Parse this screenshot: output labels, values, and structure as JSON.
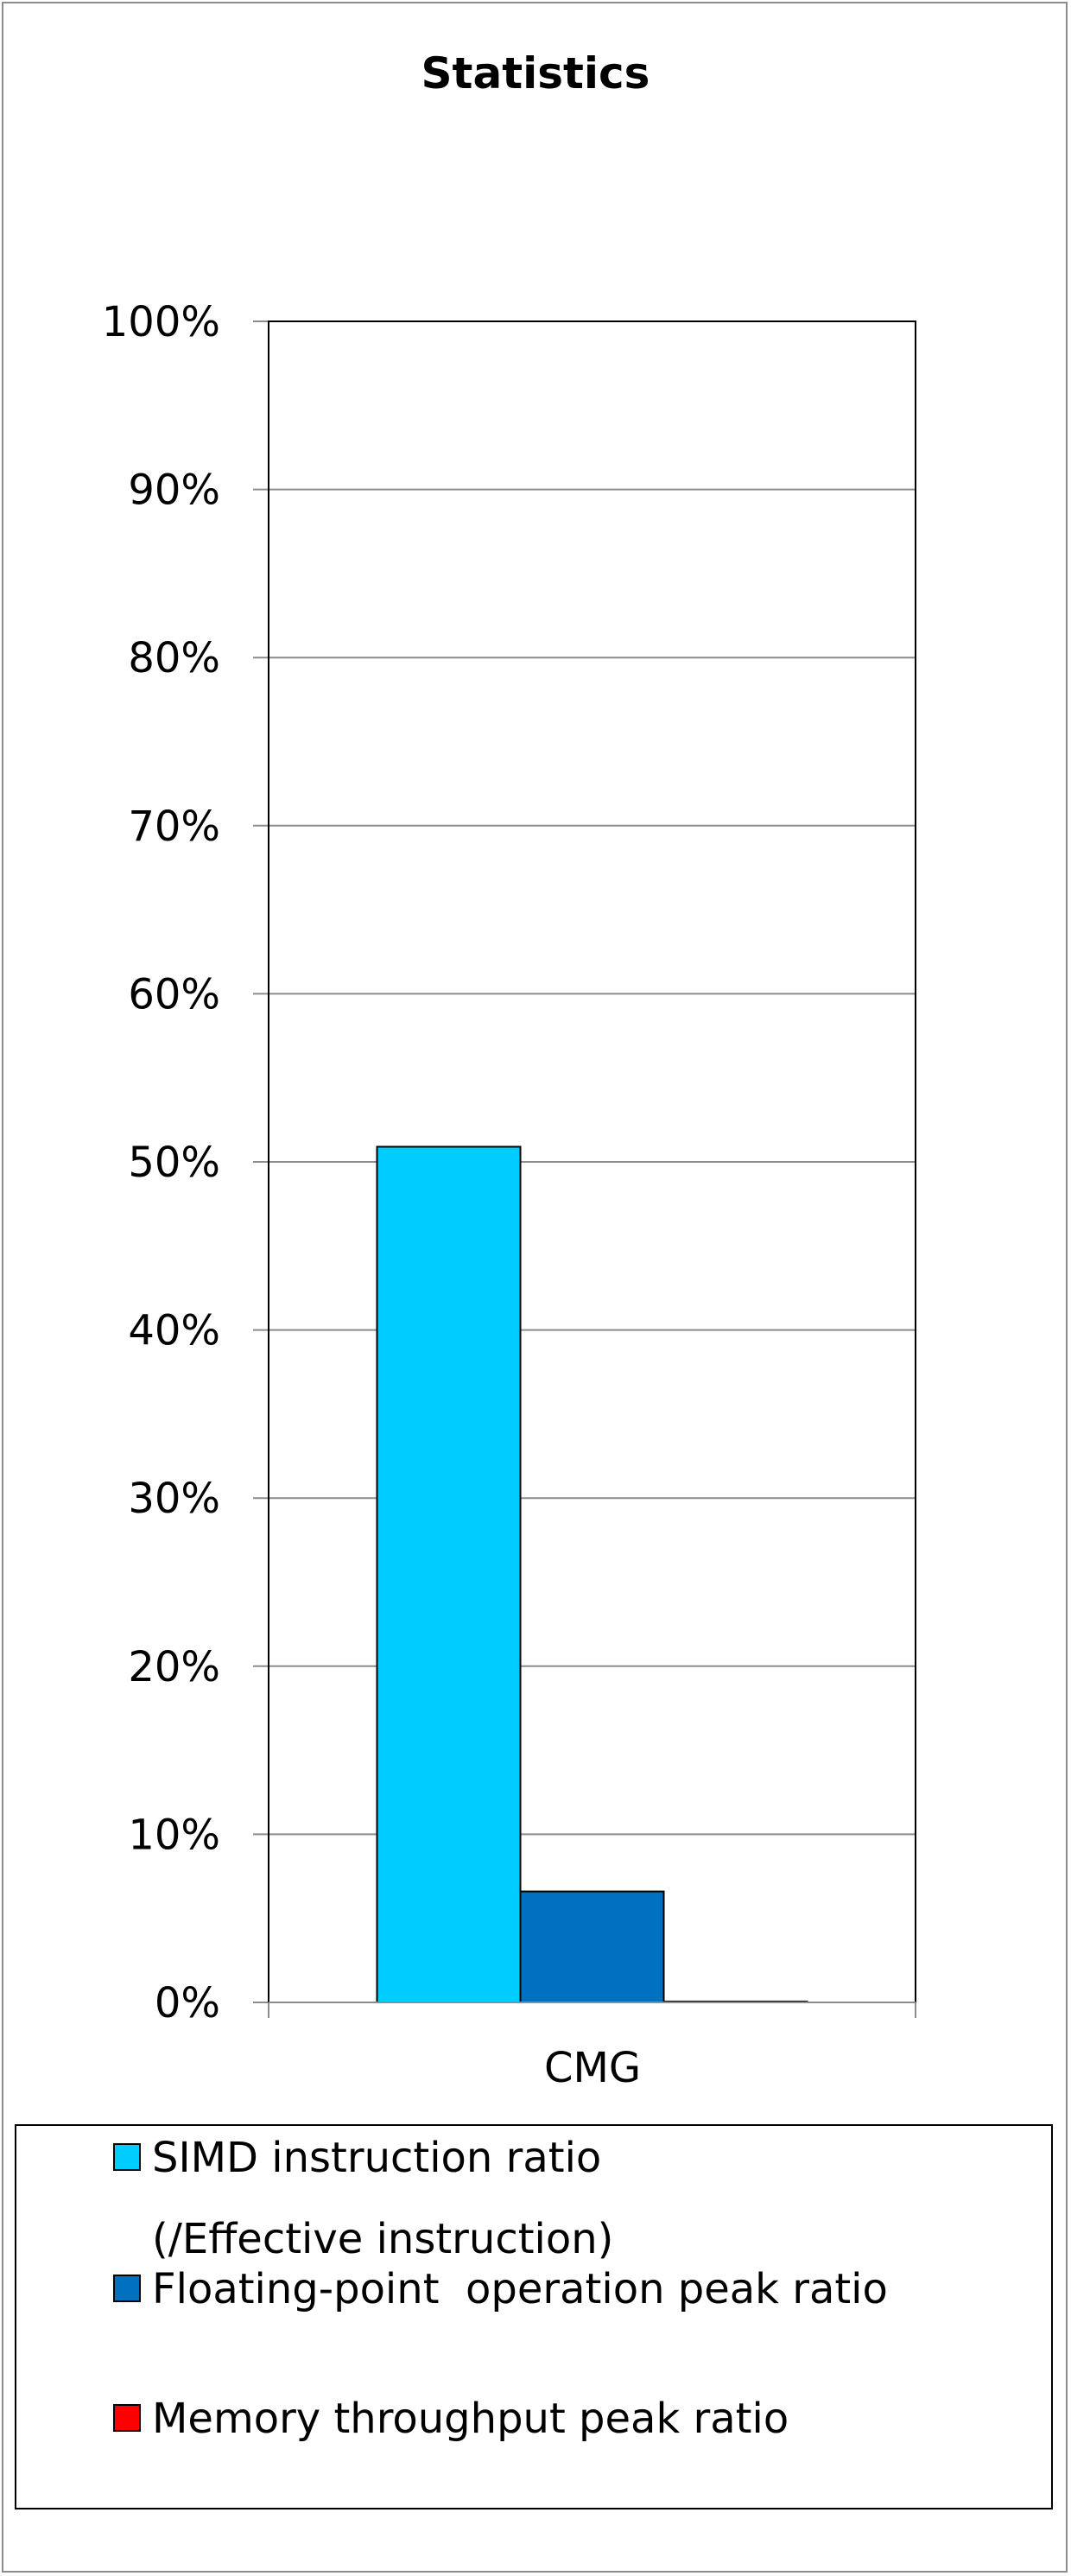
{
  "chart_data": {
    "type": "bar",
    "title": "Statistics",
    "categories": [
      "CMG"
    ],
    "series": [
      {
        "name": "SIMD instruction ratio",
        "name_line2": "(/Effective instruction)",
        "values": [
          0.509
        ],
        "color": "#00ccff"
      },
      {
        "name": "Floating-point  operation peak ratio",
        "values": [
          0.066
        ],
        "color": "#0070c0"
      },
      {
        "name": "Memory throughput peak ratio",
        "values": [
          0.0005
        ],
        "color": "#ff0000"
      }
    ],
    "ylim": [
      0,
      1
    ],
    "yticks": [
      0,
      0.1,
      0.2,
      0.3,
      0.4,
      0.5,
      0.6,
      0.7,
      0.8,
      0.9,
      1.0
    ],
    "ytick_labels": [
      "0%",
      "10%",
      "20%",
      "30%",
      "40%",
      "50%",
      "60%",
      "70%",
      "80%",
      "90%",
      "100%"
    ],
    "grid": true,
    "legend_position": "bottom"
  }
}
